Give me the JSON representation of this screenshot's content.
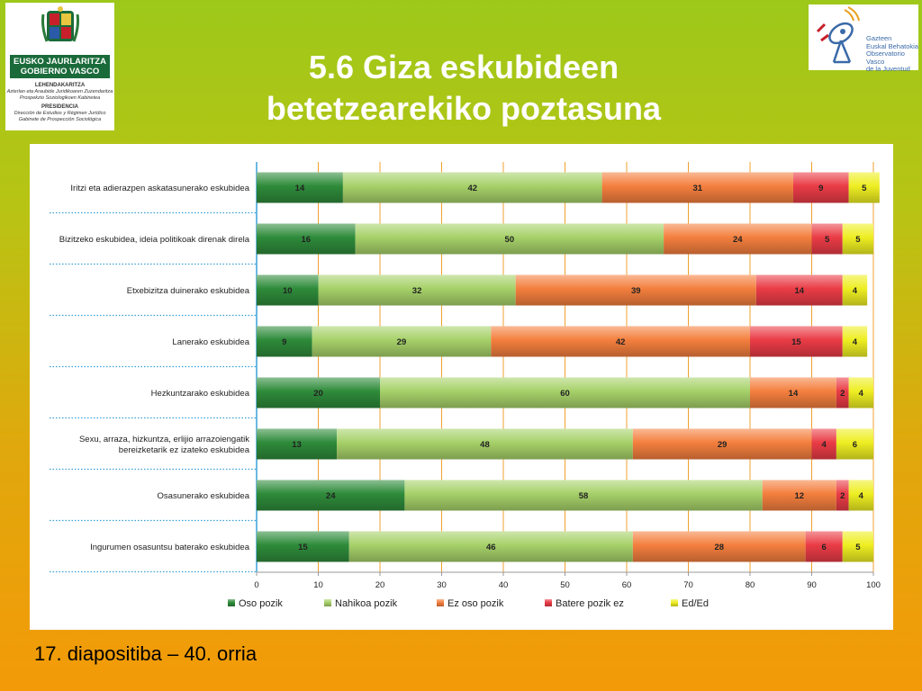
{
  "header": {
    "title_line1": "5.6 Giza eskubideen",
    "title_line2": "betetzearekiko poztasuna"
  },
  "logo_left": {
    "band1": "EUSKO JAURLARITZA",
    "band2": "GOBIERNO VASCO",
    "org1_title": "LEHENDAKARITZA",
    "org1_line1": "Azterlan eta Araubide Juridikoaren Zuzendaritza",
    "org1_line2": "Prospekzio Soziologikoen Kabinetea",
    "org2_title": "PRESIDENCIA",
    "org2_line1": "Dirección de Estudios y Régimen Jurídico",
    "org2_line2": "Gabinete de Prospección Sociológica"
  },
  "logo_right": {
    "line1": "Gazteen",
    "line2": "Euskal Behatokia",
    "line3": "Observatorio Vasco",
    "line4": "de la Juventud"
  },
  "footer": {
    "text": "17. diapositiba – 40. orria"
  },
  "chart_data": {
    "type": "bar",
    "orientation": "horizontal-stacked",
    "xlim": [
      0,
      100
    ],
    "xticks": [
      0,
      10,
      20,
      30,
      40,
      50,
      60,
      70,
      80,
      90,
      100
    ],
    "legend_position": "bottom",
    "categories": [
      [
        "Iritzi eta adierazpen askatasunerako eskubidea"
      ],
      [
        "Bizitzeko eskubidea, ideia politikoak direnak direla"
      ],
      [
        "Etxebizitza duinerako eskubidea"
      ],
      [
        "Lanerako eskubidea"
      ],
      [
        "Hezkuntzarako eskubidea"
      ],
      [
        "Sexu, arraza, hizkuntza, erlijio arrazoiengatik",
        "bereizketarik ez izateko eskubidea"
      ],
      [
        "Osasunerako eskubidea"
      ],
      [
        "Ingurumen osasuntsu baterako eskubidea"
      ]
    ],
    "series": [
      {
        "name": "Oso pozik",
        "color": "#2e8b3a",
        "values": [
          14,
          16,
          10,
          9,
          20,
          13,
          24,
          15
        ]
      },
      {
        "name": "Nahikoa pozik",
        "color": "#a6d169",
        "values": [
          42,
          50,
          32,
          29,
          60,
          48,
          58,
          46
        ]
      },
      {
        "name": "Ez oso pozik",
        "color": "#f47f3e",
        "values": [
          31,
          24,
          39,
          42,
          14,
          29,
          12,
          28
        ]
      },
      {
        "name": "Batere pozik ez",
        "color": "#ea3c46",
        "values": [
          9,
          5,
          14,
          15,
          2,
          4,
          2,
          6
        ]
      },
      {
        "name": "Ed/Ed",
        "color": "#eeee22",
        "values": [
          5,
          5,
          4,
          4,
          4,
          6,
          4,
          5
        ]
      }
    ]
  }
}
